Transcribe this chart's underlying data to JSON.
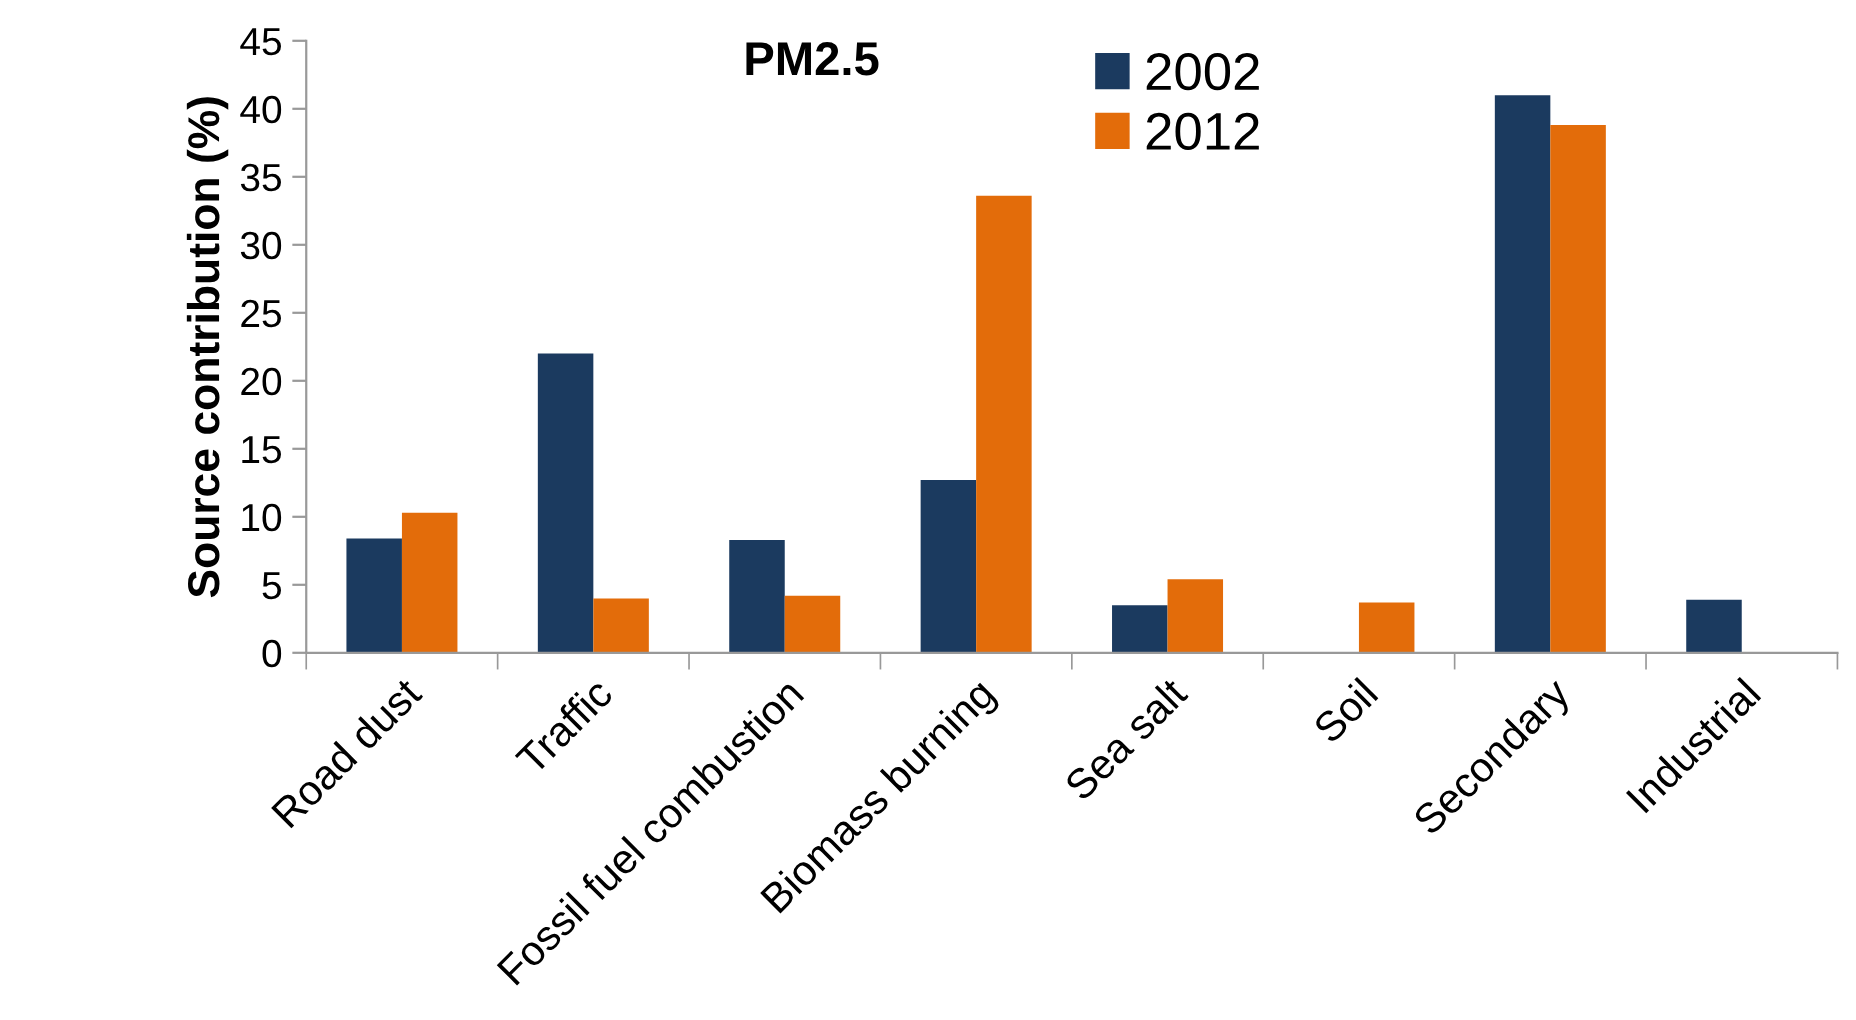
{
  "chart_data": {
    "type": "bar",
    "title": "PM2.5",
    "ylabel": "Source contribution (%)",
    "categories": [
      "Road dust",
      "Traffic",
      "Fossil fuel combustion",
      "Biomass burning",
      "Sea salt",
      "Soil",
      "Secondary",
      "Industrial"
    ],
    "series": [
      {
        "name": "2002",
        "color": "#1b3a5f",
        "values": [
          8.4,
          22,
          8.3,
          12.7,
          3.5,
          null,
          41,
          3.9
        ]
      },
      {
        "name": "2012",
        "color": "#e36c0a",
        "values": [
          10.3,
          4,
          4.2,
          33.6,
          5.4,
          3.7,
          38.8,
          null
        ]
      }
    ],
    "ylim": [
      0,
      45
    ],
    "yticks": [
      0,
      5,
      10,
      15,
      20,
      25,
      30,
      35,
      40,
      45
    ],
    "grid": false,
    "legend": "top"
  }
}
